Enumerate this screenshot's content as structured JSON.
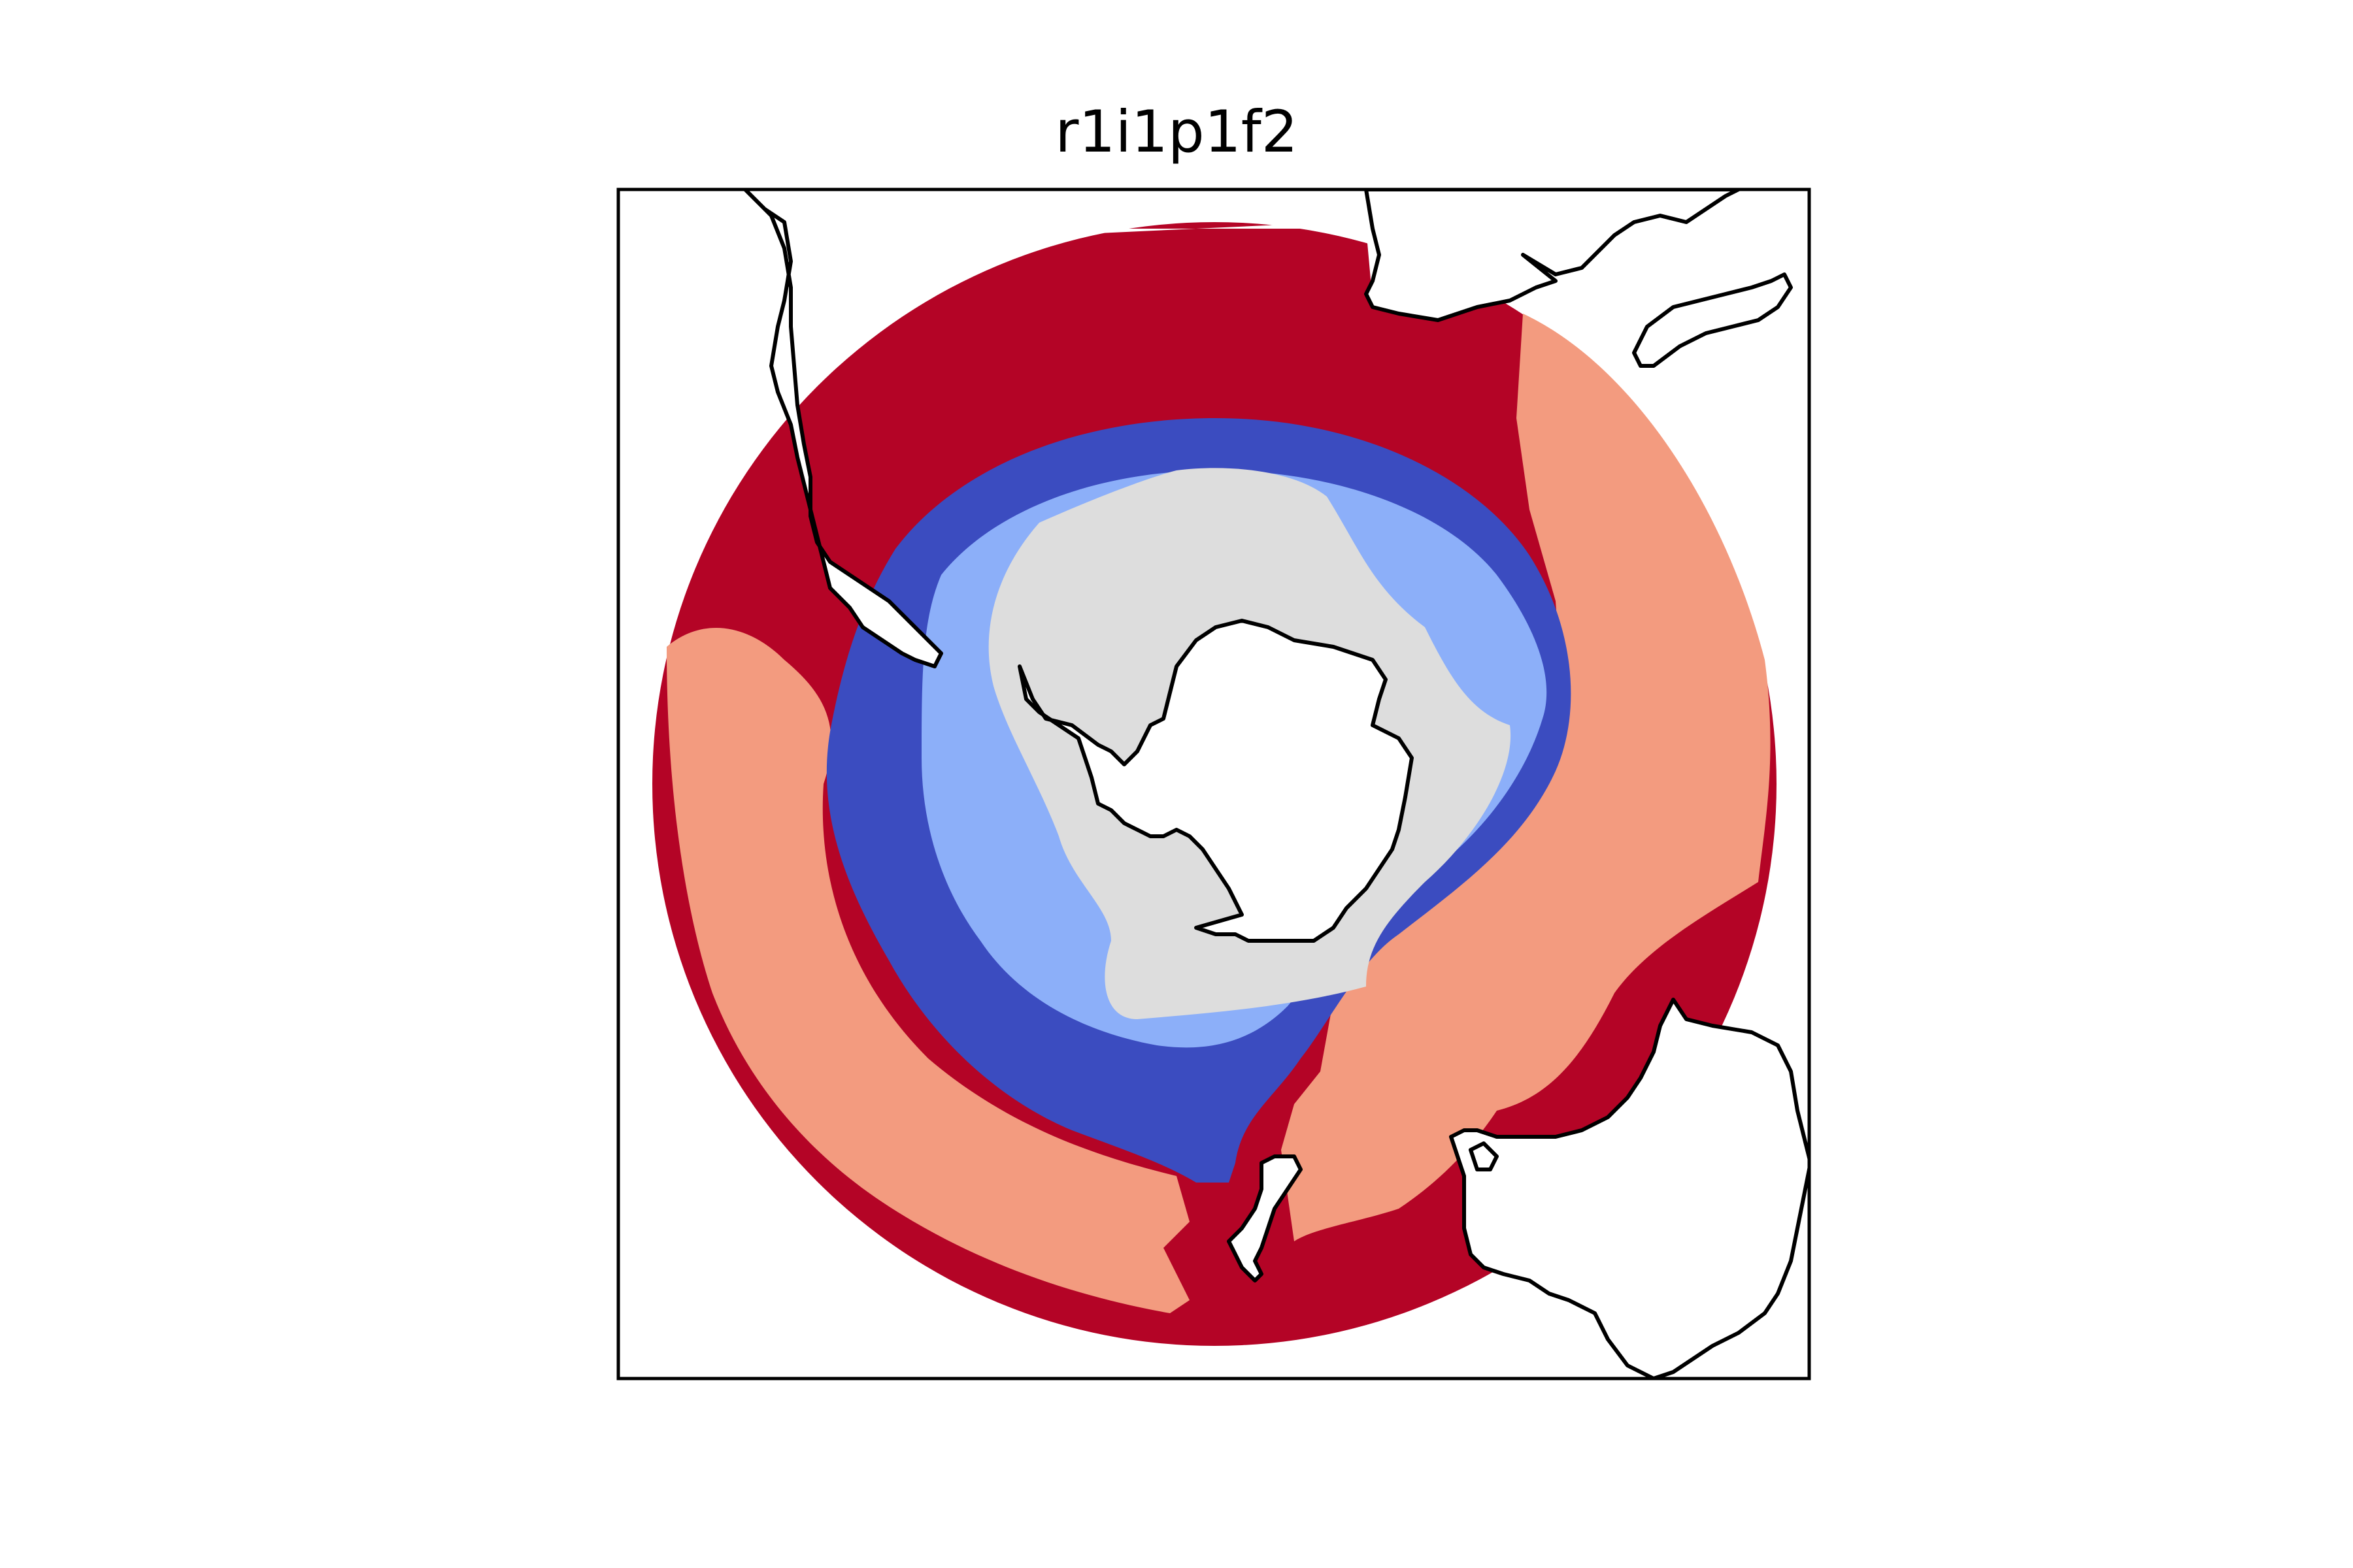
{
  "title": "r1i1p1f2",
  "projection": "south-polar-stereographic",
  "colors": {
    "band_outer": "#b40426",
    "band_mid_warm": "#f39b7f",
    "band_mid_cold": "#3b4cc0",
    "band_inner_cold": "#8caff9",
    "sea_ice": "#dddddd",
    "land_fill": "#ffffff",
    "coastline": "#000000",
    "frame": "#000000"
  },
  "legend": "none",
  "gridlines": false
}
